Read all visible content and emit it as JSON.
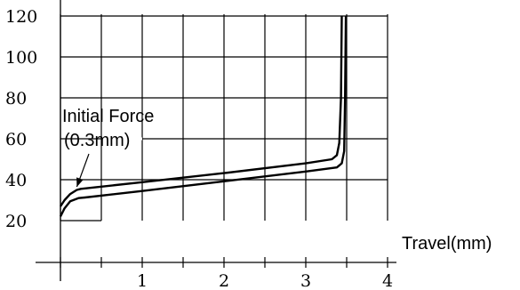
{
  "chart_data": {
    "type": "line",
    "xlabel": "Travel(mm)",
    "ylabel": "",
    "xlim": [
      0,
      4
    ],
    "ylim": [
      20,
      120
    ],
    "x_ticks": [
      "1",
      "2",
      "3",
      "4"
    ],
    "y_ticks": [
      "120",
      "100",
      "80",
      "60",
      "40",
      "20"
    ],
    "grid": true,
    "annotation": {
      "line1": "Initial Force",
      "line2": "(0.3mm)",
      "points_to": {
        "x": 0.2,
        "y": 33
      }
    },
    "series": [
      {
        "x": [
          0,
          0.05,
          0.12,
          0.2,
          0.25,
          1.0,
          2.0,
          3.0,
          3.32,
          3.38,
          3.41,
          3.43,
          3.44
        ],
        "y": [
          27,
          30,
          33,
          35,
          35.5,
          38.8,
          43.2,
          48,
          50,
          52,
          58,
          80,
          120
        ]
      },
      {
        "x": [
          0,
          0.05,
          0.12,
          0.22,
          0.3,
          1.0,
          2.0,
          3.0,
          3.38,
          3.44,
          3.47,
          3.48,
          3.49
        ],
        "y": [
          22,
          26,
          29.5,
          31,
          31.3,
          34.5,
          39.2,
          44,
          46,
          48,
          54,
          80,
          120
        ]
      }
    ]
  }
}
